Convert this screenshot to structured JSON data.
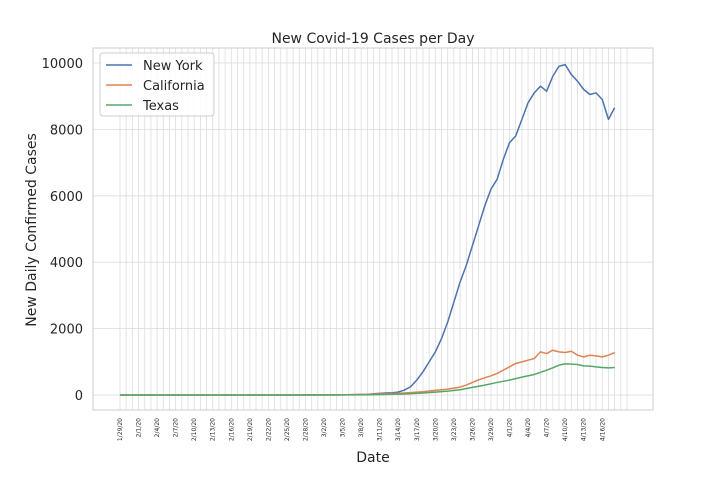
{
  "chart_data": {
    "type": "line",
    "title": "New Covid-19 Cases per Day",
    "xlabel": "Date",
    "ylabel": "New Daily Confirmed Cases",
    "x_start": "1/29/20",
    "x_end": "4/20/20",
    "tick_labels": [
      "1/29/20",
      "2/1/20",
      "2/4/20",
      "2/7/20",
      "2/10/20",
      "2/13/20",
      "2/16/20",
      "2/19/20",
      "2/22/20",
      "2/25/20",
      "2/28/20",
      "3/2/20",
      "3/5/20",
      "3/8/20",
      "3/11/20",
      "3/14/20",
      "3/17/20",
      "3/20/20",
      "3/23/20",
      "3/26/20",
      "3/29/20",
      "4/1/20",
      "4/4/20",
      "4/7/20",
      "4/10/20",
      "4/13/20",
      "4/16/20"
    ],
    "yticks": [
      0,
      2000,
      4000,
      6000,
      8000,
      10000
    ],
    "ytick_labels": [
      "0",
      "2000",
      "4000",
      "6000",
      "8000",
      "10000"
    ],
    "ylim": [
      -450,
      10450
    ],
    "grid": true,
    "legend_position": "top-left",
    "series": [
      {
        "name": "New York",
        "color": "#4c72b0",
        "points": [
          [
            "1/29/20",
            0
          ],
          [
            "2/5/20",
            0
          ],
          [
            "2/12/20",
            0
          ],
          [
            "2/19/20",
            0
          ],
          [
            "2/26/20",
            0
          ],
          [
            "3/4/20",
            5
          ],
          [
            "3/6/20",
            10
          ],
          [
            "3/8/20",
            15
          ],
          [
            "3/9/20",
            20
          ],
          [
            "3/10/20",
            40
          ],
          [
            "3/11/20",
            50
          ],
          [
            "3/12/20",
            60
          ],
          [
            "3/13/20",
            70
          ],
          [
            "3/14/20",
            90
          ],
          [
            "3/15/20",
            150
          ],
          [
            "3/16/20",
            250
          ],
          [
            "3/17/20",
            450
          ],
          [
            "3/18/20",
            700
          ],
          [
            "3/19/20",
            1000
          ],
          [
            "3/20/20",
            1300
          ],
          [
            "3/21/20",
            1700
          ],
          [
            "3/22/20",
            2200
          ],
          [
            "3/23/20",
            2800
          ],
          [
            "3/24/20",
            3400
          ],
          [
            "3/25/20",
            3900
          ],
          [
            "3/26/20",
            4500
          ],
          [
            "3/27/20",
            5100
          ],
          [
            "3/28/20",
            5700
          ],
          [
            "3/29/20",
            6200
          ],
          [
            "3/30/20",
            6500
          ],
          [
            "3/31/20",
            7100
          ],
          [
            "4/1/20",
            7600
          ],
          [
            "4/2/20",
            7800
          ],
          [
            "4/3/20",
            8300
          ],
          [
            "4/4/20",
            8800
          ],
          [
            "4/5/20",
            9100
          ],
          [
            "4/6/20",
            9300
          ],
          [
            "4/7/20",
            9150
          ],
          [
            "4/8/20",
            9600
          ],
          [
            "4/9/20",
            9900
          ],
          [
            "4/10/20",
            9950
          ],
          [
            "4/11/20",
            9650
          ],
          [
            "4/12/20",
            9450
          ],
          [
            "4/13/20",
            9200
          ],
          [
            "4/14/20",
            9050
          ],
          [
            "4/15/20",
            9100
          ],
          [
            "4/16/20",
            8900
          ],
          [
            "4/17/20",
            8300
          ],
          [
            "4/18/20",
            8650
          ]
        ]
      },
      {
        "name": "California",
        "color": "#dd8452",
        "points": [
          [
            "1/29/20",
            0
          ],
          [
            "2/19/20",
            0
          ],
          [
            "3/4/20",
            5
          ],
          [
            "3/8/20",
            15
          ],
          [
            "3/12/20",
            40
          ],
          [
            "3/15/20",
            60
          ],
          [
            "3/18/20",
            100
          ],
          [
            "3/20/20",
            140
          ],
          [
            "3/22/20",
            180
          ],
          [
            "3/24/20",
            240
          ],
          [
            "3/25/20",
            300
          ],
          [
            "3/26/20",
            380
          ],
          [
            "3/27/20",
            460
          ],
          [
            "3/28/20",
            520
          ],
          [
            "3/29/20",
            580
          ],
          [
            "3/30/20",
            650
          ],
          [
            "3/31/20",
            750
          ],
          [
            "4/1/20",
            850
          ],
          [
            "4/2/20",
            950
          ],
          [
            "4/3/20",
            1000
          ],
          [
            "4/4/20",
            1050
          ],
          [
            "4/5/20",
            1100
          ],
          [
            "4/6/20",
            1300
          ],
          [
            "4/7/20",
            1250
          ],
          [
            "4/8/20",
            1350
          ],
          [
            "4/9/20",
            1300
          ],
          [
            "4/10/20",
            1280
          ],
          [
            "4/11/20",
            1320
          ],
          [
            "4/12/20",
            1200
          ],
          [
            "4/13/20",
            1150
          ],
          [
            "4/14/20",
            1200
          ],
          [
            "4/15/20",
            1180
          ],
          [
            "4/16/20",
            1150
          ],
          [
            "4/17/20",
            1200
          ],
          [
            "4/18/20",
            1280
          ]
        ]
      },
      {
        "name": "Texas",
        "color": "#55a868",
        "points": [
          [
            "1/29/20",
            0
          ],
          [
            "2/19/20",
            0
          ],
          [
            "3/4/20",
            2
          ],
          [
            "3/10/20",
            10
          ],
          [
            "3/15/20",
            30
          ],
          [
            "3/18/20",
            60
          ],
          [
            "3/20/20",
            90
          ],
          [
            "3/22/20",
            120
          ],
          [
            "3/24/20",
            160
          ],
          [
            "3/26/20",
            230
          ],
          [
            "3/28/20",
            300
          ],
          [
            "3/30/20",
            380
          ],
          [
            "4/1/20",
            450
          ],
          [
            "4/3/20",
            540
          ],
          [
            "4/5/20",
            620
          ],
          [
            "4/7/20",
            750
          ],
          [
            "4/8/20",
            820
          ],
          [
            "4/9/20",
            900
          ],
          [
            "4/10/20",
            940
          ],
          [
            "4/11/20",
            930
          ],
          [
            "4/12/20",
            920
          ],
          [
            "4/13/20",
            880
          ],
          [
            "4/14/20",
            870
          ],
          [
            "4/15/20",
            850
          ],
          [
            "4/16/20",
            830
          ],
          [
            "4/17/20",
            820
          ],
          [
            "4/18/20",
            830
          ]
        ]
      }
    ]
  }
}
